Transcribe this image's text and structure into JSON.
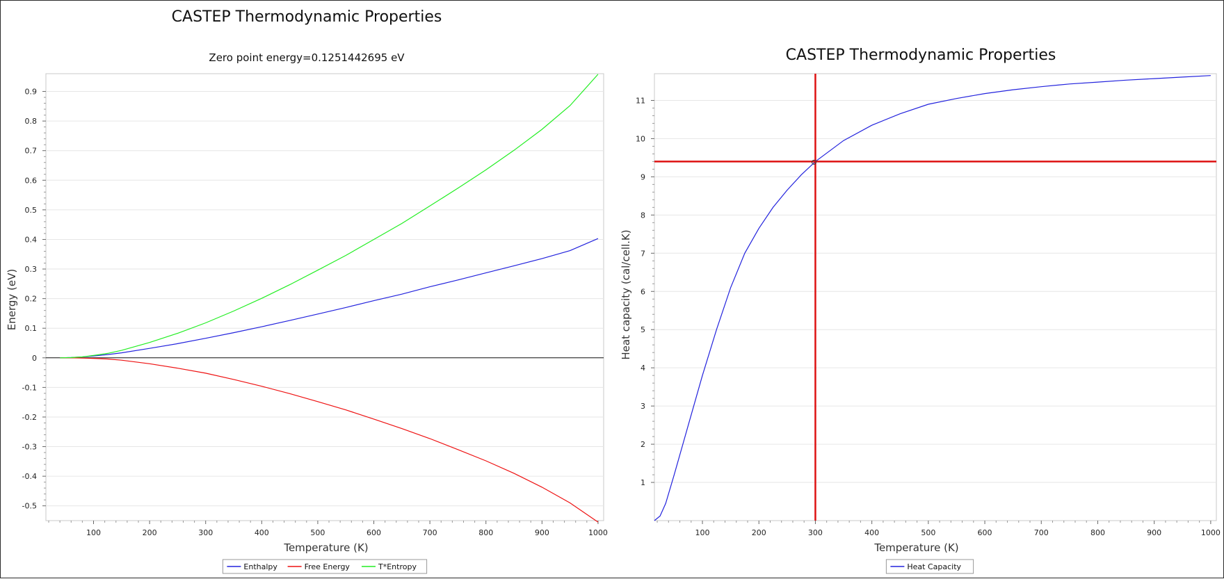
{
  "chart_data": [
    {
      "type": "line",
      "title": "CASTEP Thermodynamic Properties",
      "subtitle": "Zero point energy=0.1251442695 eV",
      "xlabel": "Temperature (K)",
      "ylabel": "Energy  (eV)",
      "xlim": [
        15,
        1010
      ],
      "ylim": [
        -0.55,
        0.96
      ],
      "xticks": [
        100,
        200,
        300,
        400,
        500,
        600,
        700,
        800,
        900,
        1000
      ],
      "yticks": [
        -0.5,
        -0.4,
        -0.3,
        -0.2,
        -0.1,
        0,
        0.1,
        0.2,
        0.3,
        0.4,
        0.5,
        0.6,
        0.7,
        0.8,
        0.9
      ],
      "grid": true,
      "zero_line": true,
      "legend": "bottom",
      "series": [
        {
          "name": "Enthalpy",
          "color": "#2222dd",
          "x": [
            40,
            60,
            80,
            100,
            125,
            150,
            200,
            250,
            300,
            350,
            400,
            450,
            500,
            550,
            600,
            650,
            700,
            750,
            800,
            850,
            900,
            950,
            1000
          ],
          "y": [
            0,
            0.001,
            0.003,
            0.006,
            0.011,
            0.017,
            0.032,
            0.048,
            0.066,
            0.085,
            0.105,
            0.126,
            0.148,
            0.17,
            0.193,
            0.215,
            0.24,
            0.263,
            0.287,
            0.311,
            0.335,
            0.362,
            0.403
          ]
        },
        {
          "name": "Free Energy",
          "color": "#ee1111",
          "x": [
            40,
            60,
            80,
            100,
            125,
            150,
            200,
            250,
            300,
            350,
            400,
            450,
            500,
            550,
            600,
            650,
            700,
            750,
            800,
            850,
            900,
            950,
            1000
          ],
          "y": [
            0,
            0,
            -0.001,
            -0.002,
            -0.004,
            -0.008,
            -0.02,
            -0.035,
            -0.052,
            -0.073,
            -0.096,
            -0.121,
            -0.148,
            -0.176,
            -0.207,
            -0.239,
            -0.273,
            -0.31,
            -0.348,
            -0.39,
            -0.437,
            -0.49,
            -0.555
          ]
        },
        {
          "name": "T*Entropy",
          "color": "#22ee22",
          "x": [
            40,
            60,
            80,
            100,
            125,
            150,
            200,
            250,
            300,
            350,
            400,
            450,
            500,
            550,
            600,
            650,
            700,
            750,
            800,
            850,
            900,
            950,
            1000
          ],
          "y": [
            0,
            0.001,
            0.003,
            0.008,
            0.015,
            0.025,
            0.052,
            0.083,
            0.118,
            0.158,
            0.201,
            0.247,
            0.296,
            0.346,
            0.4,
            0.454,
            0.513,
            0.573,
            0.635,
            0.701,
            0.772,
            0.852,
            0.958
          ]
        }
      ]
    },
    {
      "type": "line",
      "title": "CASTEP Thermodynamic Properties",
      "xlabel": "Temperature (K)",
      "ylabel": "Heat capacity  (cal/cell.K)",
      "xlim": [
        15,
        1010
      ],
      "ylim": [
        0,
        11.7
      ],
      "xticks": [
        100,
        200,
        300,
        400,
        500,
        600,
        700,
        800,
        900,
        1000
      ],
      "yticks": [
        1,
        2,
        3,
        4,
        5,
        6,
        7,
        8,
        9,
        10,
        11
      ],
      "grid": true,
      "legend": "bottom",
      "crosshair": {
        "x": 300,
        "y": 9.4,
        "color": "#dd1111"
      },
      "series": [
        {
          "name": "Heat Capacity",
          "color": "#2222dd",
          "x": [
            15,
            25,
            35,
            50,
            75,
            100,
            125,
            150,
            175,
            200,
            225,
            250,
            275,
            300,
            350,
            400,
            450,
            500,
            550,
            600,
            650,
            700,
            750,
            800,
            850,
            900,
            950,
            1000
          ],
          "y": [
            0,
            0.12,
            0.45,
            1.2,
            2.5,
            3.8,
            5.0,
            6.1,
            7.0,
            7.65,
            8.2,
            8.65,
            9.05,
            9.4,
            9.95,
            10.35,
            10.65,
            10.9,
            11.05,
            11.18,
            11.28,
            11.36,
            11.43,
            11.48,
            11.53,
            11.57,
            11.61,
            11.65
          ]
        }
      ]
    }
  ]
}
